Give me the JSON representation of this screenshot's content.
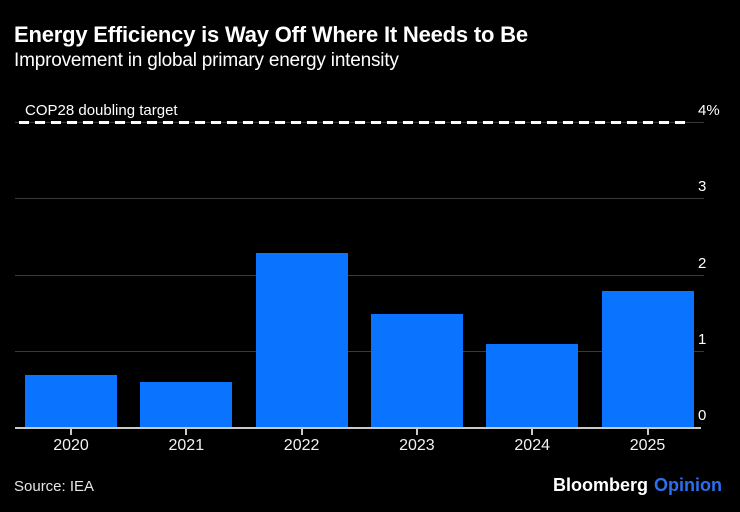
{
  "header": {
    "title": "Energy Efficiency is Way Off Where It Needs to Be",
    "subtitle": "Improvement in global primary energy intensity"
  },
  "chart_data": {
    "type": "bar",
    "categories": [
      "2020",
      "2021",
      "2022",
      "2023",
      "2024",
      "2025"
    ],
    "values": [
      0.7,
      0.6,
      2.3,
      1.5,
      1.1,
      1.8
    ],
    "title": "Energy Efficiency is Way Off Where It Needs to Be",
    "subtitle": "Improvement in global primary energy intensity",
    "xlabel": "",
    "ylabel": "",
    "unit": "%",
    "ylim": [
      0,
      4
    ],
    "grid": "horizontal",
    "legend": "none",
    "y_ticks": [
      {
        "label": "4%",
        "value": 4
      },
      {
        "label": "3",
        "value": 3
      },
      {
        "label": "2",
        "value": 2
      },
      {
        "label": "1",
        "value": 1
      },
      {
        "label": "0",
        "value": 0
      }
    ],
    "target_line": {
      "label": "COP28 doubling target",
      "value": 4,
      "style": "dashed"
    }
  },
  "footer": {
    "source": "Source: IEA",
    "brand": {
      "name": "Bloomberg",
      "suffix": "Opinion"
    }
  },
  "colors": {
    "background": "#000000",
    "bar": "#0A73FF",
    "gridline": "#3A3A3A",
    "axis_line": "#C9C9C9",
    "tick": "#C9C9C9",
    "target_line": "#FFFFFF",
    "text": "#FFFFFF",
    "brand_suffix": "#2B6FF0"
  }
}
